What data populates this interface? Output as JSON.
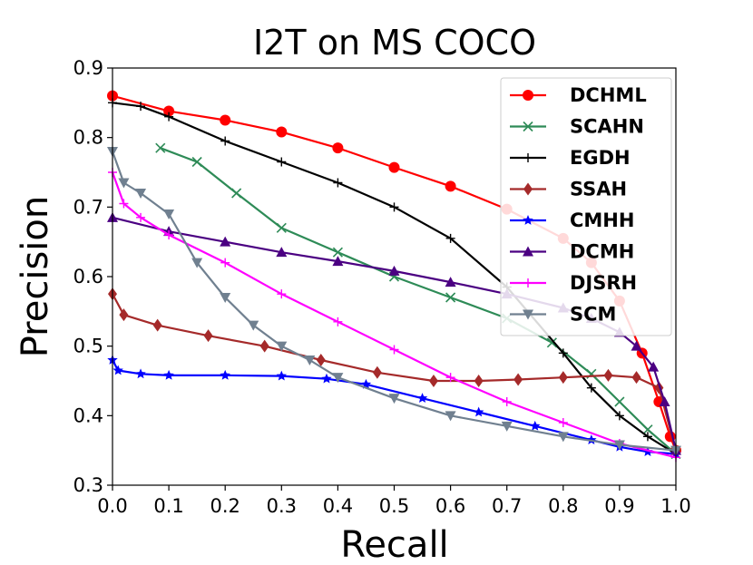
{
  "chart_data": {
    "type": "line",
    "title": "I2T on MS COCO",
    "xlabel": "Recall",
    "ylabel": "Precision",
    "xlim": [
      0.0,
      1.0
    ],
    "ylim": [
      0.3,
      0.9
    ],
    "xticks": [
      "0.0",
      "0.1",
      "0.2",
      "0.3",
      "0.4",
      "0.5",
      "0.6",
      "0.7",
      "0.8",
      "0.9",
      "1.0"
    ],
    "yticks": [
      "0.3",
      "0.4",
      "0.5",
      "0.6",
      "0.7",
      "0.8",
      "0.9"
    ],
    "legend_position": "top-right",
    "series": [
      {
        "name": "DCHML",
        "color": "#ff0000",
        "marker": "circle",
        "x": [
          0.0,
          0.1,
          0.2,
          0.3,
          0.4,
          0.5,
          0.6,
          0.7,
          0.8,
          0.85,
          0.9,
          0.94,
          0.97,
          0.99,
          1.0
        ],
        "y": [
          0.86,
          0.838,
          0.825,
          0.808,
          0.785,
          0.757,
          0.73,
          0.697,
          0.655,
          0.62,
          0.565,
          0.49,
          0.42,
          0.37,
          0.35
        ]
      },
      {
        "name": "SCAHN",
        "color": "#2e8b57",
        "marker": "x",
        "x": [
          0.085,
          0.15,
          0.22,
          0.3,
          0.4,
          0.5,
          0.6,
          0.7,
          0.78,
          0.85,
          0.9,
          0.95,
          1.0
        ],
        "y": [
          0.785,
          0.765,
          0.72,
          0.67,
          0.635,
          0.6,
          0.57,
          0.54,
          0.505,
          0.46,
          0.42,
          0.38,
          0.345
        ]
      },
      {
        "name": "EGDH",
        "color": "#000000",
        "marker": "plus",
        "x": [
          0.0,
          0.05,
          0.1,
          0.2,
          0.3,
          0.4,
          0.5,
          0.6,
          0.7,
          0.8,
          0.85,
          0.9,
          0.95,
          1.0
        ],
        "y": [
          0.85,
          0.845,
          0.83,
          0.795,
          0.765,
          0.735,
          0.7,
          0.655,
          0.585,
          0.49,
          0.44,
          0.4,
          0.37,
          0.345
        ]
      },
      {
        "name": "SSAH",
        "color": "#a52a2a",
        "marker": "diamond",
        "x": [
          0.0,
          0.02,
          0.08,
          0.17,
          0.27,
          0.37,
          0.47,
          0.57,
          0.65,
          0.72,
          0.8,
          0.88,
          0.93,
          0.97,
          1.0
        ],
        "y": [
          0.575,
          0.545,
          0.53,
          0.515,
          0.5,
          0.48,
          0.462,
          0.45,
          0.45,
          0.452,
          0.455,
          0.458,
          0.455,
          0.44,
          0.35
        ]
      },
      {
        "name": "CMHH",
        "color": "#0000ff",
        "marker": "star",
        "x": [
          0.0,
          0.01,
          0.05,
          0.1,
          0.2,
          0.3,
          0.38,
          0.45,
          0.55,
          0.65,
          0.75,
          0.85,
          0.9,
          0.95,
          1.0
        ],
        "y": [
          0.48,
          0.465,
          0.46,
          0.458,
          0.458,
          0.457,
          0.453,
          0.445,
          0.425,
          0.405,
          0.385,
          0.365,
          0.355,
          0.348,
          0.345
        ]
      },
      {
        "name": "DCMH",
        "color": "#4b0082",
        "marker": "triangle-up",
        "x": [
          0.0,
          0.1,
          0.2,
          0.3,
          0.4,
          0.5,
          0.6,
          0.7,
          0.8,
          0.85,
          0.9,
          0.93,
          0.96,
          0.98,
          1.0
        ],
        "y": [
          0.685,
          0.665,
          0.65,
          0.635,
          0.622,
          0.608,
          0.592,
          0.575,
          0.555,
          0.54,
          0.52,
          0.5,
          0.47,
          0.42,
          0.35
        ]
      },
      {
        "name": "DJSRH",
        "color": "#ff00ff",
        "marker": "plus",
        "x": [
          0.0,
          0.02,
          0.05,
          0.1,
          0.2,
          0.3,
          0.4,
          0.5,
          0.6,
          0.7,
          0.8,
          0.9,
          1.0
        ],
        "y": [
          0.75,
          0.705,
          0.685,
          0.66,
          0.62,
          0.575,
          0.535,
          0.495,
          0.455,
          0.42,
          0.39,
          0.36,
          0.34
        ]
      },
      {
        "name": "SCM",
        "color": "#708090",
        "marker": "triangle-down",
        "x": [
          0.0,
          0.02,
          0.05,
          0.1,
          0.15,
          0.2,
          0.25,
          0.3,
          0.35,
          0.4,
          0.5,
          0.6,
          0.7,
          0.8,
          0.9,
          1.0
        ],
        "y": [
          0.78,
          0.735,
          0.72,
          0.69,
          0.62,
          0.57,
          0.53,
          0.5,
          0.48,
          0.455,
          0.425,
          0.4,
          0.385,
          0.37,
          0.358,
          0.35
        ]
      }
    ]
  }
}
